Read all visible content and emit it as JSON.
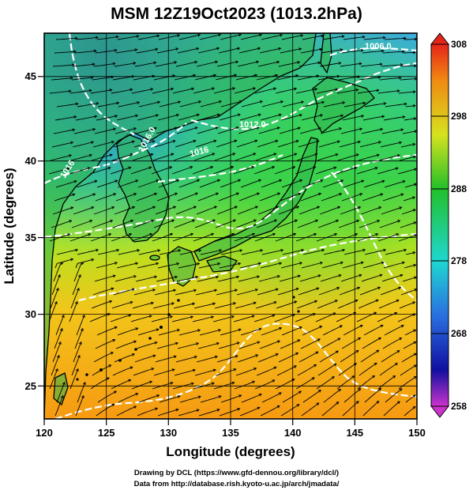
{
  "title": "MSM 12Z19Oct2023 (1013.2hPa)",
  "x_axis": {
    "label": "Longitude (degrees)",
    "range": [
      120,
      150
    ],
    "ticks": [
      120,
      125,
      130,
      135,
      140,
      145,
      150
    ]
  },
  "y_axis": {
    "label": "Latitude  (degrees)",
    "range": [
      22.4,
      47.6
    ],
    "ticks": [
      25,
      30,
      35,
      40,
      45
    ]
  },
  "colorbar": {
    "range": [
      258,
      308
    ],
    "tick_labels": [
      "308",
      "298",
      "288",
      "278",
      "268",
      "258"
    ],
    "triangle_ends": true
  },
  "contour_labels": [
    {
      "text": "1006.0",
      "lon": 145.8,
      "lat": 46.2
    },
    {
      "text": "1012.0",
      "lon": 137.2,
      "lat": 41.3
    },
    {
      "text": "1016.0",
      "lon": 127.6,
      "lat": 40.4
    },
    {
      "text": "1016",
      "lon": 121.6,
      "lat": 39.3
    },
    {
      "text": "1016",
      "lon": 134.3,
      "lat": 40.0
    }
  ],
  "credits": {
    "line1": "Drawing by DCL (https://www.gfd-dennou.org/library/dcl/)",
    "line2": "Data from http://database.rish.kyoto-u.ac.jp/arch/jmadata/"
  },
  "colors": {
    "coastline": "#000000",
    "streamline": "#000000",
    "isobar": "#ffffff",
    "frame": "#000000"
  }
}
